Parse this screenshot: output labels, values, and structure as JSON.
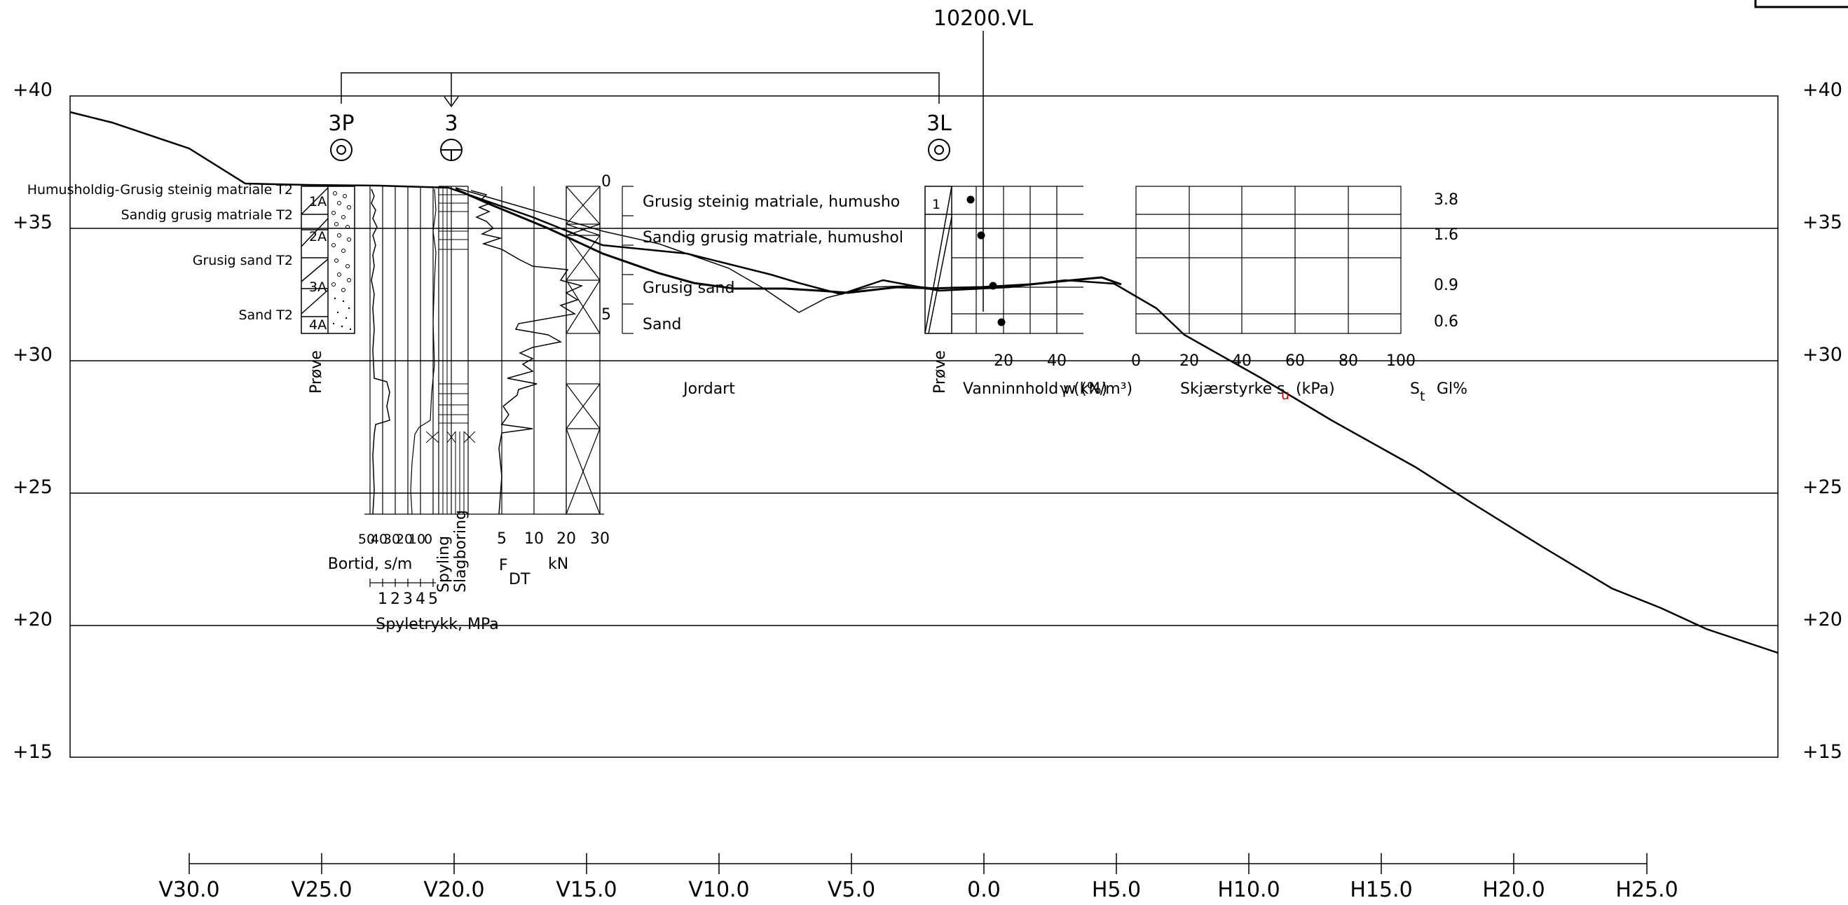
{
  "section": {
    "label": "10200.VL",
    "elevation_labels": [
      "+40",
      "+35",
      "+30",
      "+25",
      "+20",
      "+15"
    ],
    "station_labels": [
      "V30.0",
      "V25.0",
      "V20.0",
      "V15.0",
      "V10.0",
      "V5.0",
      "0.0",
      "H5.0",
      "H10.0",
      "H15.0",
      "H20.0",
      "H25.0"
    ]
  },
  "boreholes": [
    {
      "id": "3P",
      "symbol": "double-circle"
    },
    {
      "id": "3",
      "symbol": "circle-with-tee"
    },
    {
      "id": "3L",
      "symbol": "double-circle"
    }
  ],
  "sample_log_left": {
    "layer_labels": [
      "Humusholdig-Grusig steinig matriale T2",
      "Sandig grusig matriale T2",
      "Grusig sand T2",
      "Sand T2"
    ],
    "sample_ids": [
      "1A",
      "2A",
      "3A",
      "4A"
    ],
    "column_title": "Prøve"
  },
  "sounding": {
    "bortid_ticks": [
      "50",
      "40",
      "30",
      "20",
      "10",
      "0"
    ],
    "bortid_title": "Bortid, s/m",
    "spyletrykk_ticks": [
      "1",
      "2",
      "3",
      "4",
      "5"
    ],
    "spyletrykk_title": "Spyletrykk, MPa",
    "spyling_label": "Spyling",
    "slagboring_label": "Slagboring",
    "force_ticks": [
      "5",
      "10",
      "20",
      "30"
    ],
    "force_symbol": "F",
    "force_subscript": "DT",
    "force_unit": "kN"
  },
  "soil_description": {
    "depth_ticks": [
      "0",
      "5"
    ],
    "layers": [
      "Grusig steinig matriale, humusho",
      "Sandig grusig matriale, humushol",
      "Grusig sand",
      "Sand"
    ],
    "column_title": "Jordart"
  },
  "lab_results": {
    "sample_column_title": "Prøve",
    "sample_ids": [
      "1"
    ],
    "water_content_ticks": [
      "20",
      "40"
    ],
    "water_content_title": "Vanninnhold w (%)",
    "unit_weight_overlay": "γ (kN/m³)",
    "shear_ticks": [
      "0",
      "20",
      "40",
      "60",
      "80",
      "100"
    ],
    "shear_title": "Skjærstyrke s",
    "shear_subscript": "u",
    "shear_unit": "(kPa)",
    "st_symbol": "S",
    "st_subscript": "t",
    "gl_label": "Gl%",
    "gl_values": [
      "3.8",
      "1.6",
      "0.9",
      "0.6"
    ]
  },
  "colors": {
    "line": "#000000",
    "accent_red": "#cc0000",
    "background": "#ffffff"
  }
}
